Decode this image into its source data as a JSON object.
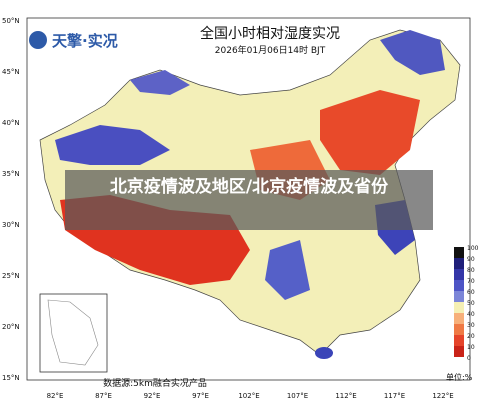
{
  "header": {
    "logo": "天擎·实况",
    "title": "全国小时相对湿度实况",
    "subtitle": "2026年01月06日14时 BJT"
  },
  "lat_labels": [
    "50°N",
    "45°N",
    "40°N",
    "35°N",
    "30°N",
    "25°N",
    "20°N",
    "15°N"
  ],
  "lon_labels": [
    "82°E",
    "87°E",
    "92°E",
    "97°E",
    "102°E",
    "107°E",
    "112°E",
    "117°E",
    "122°E"
  ],
  "legend": {
    "levels": [
      "100",
      "90",
      "80",
      "70",
      "60",
      "50",
      "40",
      "30",
      "20",
      "10",
      "0"
    ],
    "unit": "单位:%"
  },
  "source": "数据源:5km融合实况产品",
  "overlay": {
    "text": "北京疫情波及地区/北京疫情波及省份"
  }
}
